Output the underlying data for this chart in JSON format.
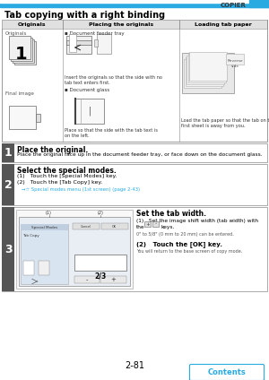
{
  "page_number": "2-81",
  "header_text": "COPIER",
  "title": "Tab copying with a right binding",
  "header_bar_color": "#29abe2",
  "header_text_color": "#000000",
  "table_headers": [
    "Originals",
    "Placing the originals",
    "Loading tab paper"
  ],
  "step1_num": "1",
  "step1_title": "Place the original.",
  "step1_body": "Place the original face up in the document feeder tray, or face down on the document glass.",
  "step2_num": "2",
  "step2_title": "Select the special modes.",
  "step2_body1": "(1)   Touch the [Special Modes] key.",
  "step2_body2": "(2)   Touch the [Tab Copy] key.",
  "step2_ref": "→☆ Special modes menu (1st screen) (page 2-43)",
  "step3_num": "3",
  "step3_title": "Set the tab width.",
  "step3_body1": "(1)   Set the image shift width (tab width) with",
  "step3_body1b": "        the              keys.",
  "step3_body1c": "        0\" to 5/8\" (0 mm to 20 mm) can be entered.",
  "step3_body2": "(2)   Touch the [OK] key.",
  "step3_body2b": "        You will return to the base screen of copy mode.",
  "contents_text": "Contents",
  "contents_color": "#29abe2",
  "bg_color": "#ffffff",
  "step_num_bg": "#555555",
  "step_num_color": "#ffffff",
  "border_color": "#aaaaaa",
  "table_header_bg": "#e0e0e0",
  "title_color": "#000000",
  "ref_color": "#29abe2"
}
